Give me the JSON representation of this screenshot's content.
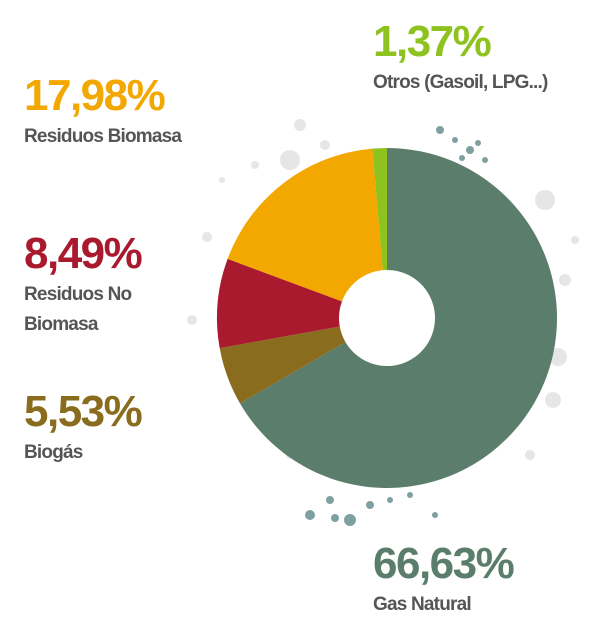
{
  "chart_data": {
    "type": "donut",
    "categories": [
      "Gas Natural",
      "Biogás",
      "Residuos No Biomasa",
      "Residuos Biomasa",
      "Otros (Gasoil, LPG...)"
    ],
    "values": [
      66.63,
      5.53,
      8.49,
      17.98,
      1.37
    ],
    "value_labels": [
      "66,63%",
      "5,53%",
      "8,49%",
      "17,98%",
      "1,37%"
    ],
    "colors": [
      "#5b7d6b",
      "#8a6c1e",
      "#a91a2f",
      "#f2a800",
      "#8ec31f"
    ]
  }
}
